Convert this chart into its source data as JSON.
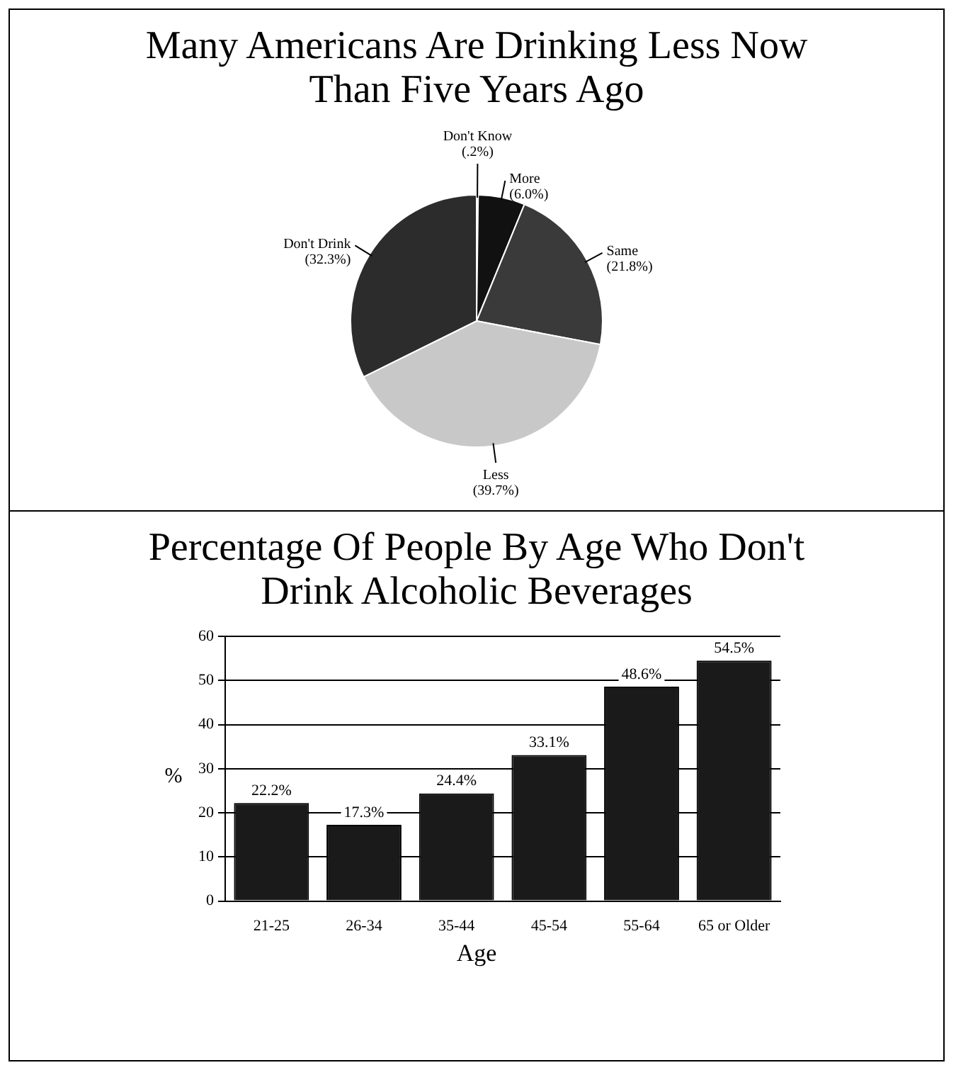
{
  "chart_data": [
    {
      "type": "pie",
      "title": "Many Americans Are Drinking Less Now Than Five Years Ago",
      "categories": [
        "Don't Know",
        "More",
        "Same",
        "Less",
        "Don't Drink"
      ],
      "values": [
        0.2,
        6.0,
        21.8,
        39.7,
        32.3
      ],
      "value_labels": [
        "(.2%)",
        "(6.0%)",
        "(21.8%)",
        "(39.7%)",
        "(32.3%)"
      ],
      "colors": [
        "#1a1a1a",
        "#111111",
        "#3a3a3a",
        "#c8c8c8",
        "#2c2c2c"
      ],
      "legend": false
    },
    {
      "type": "bar",
      "title": "Percentage Of People By Age Who Don't Drink Alcoholic Beverages",
      "xlabel": "Age",
      "ylabel": "%",
      "categories": [
        "21-25",
        "26-34",
        "35-44",
        "45-54",
        "55-64",
        "65 or Older"
      ],
      "values": [
        22.2,
        17.3,
        24.4,
        33.1,
        48.6,
        54.5
      ],
      "value_labels": [
        "22.2%",
        "17.3%",
        "24.4%",
        "33.1%",
        "48.6%",
        "54.5%"
      ],
      "color": "#1a1a1a",
      "ylim": [
        0,
        60
      ],
      "yticks": [
        0,
        10,
        20,
        30,
        40,
        50,
        60
      ],
      "grid": "y",
      "legend": false
    }
  ]
}
